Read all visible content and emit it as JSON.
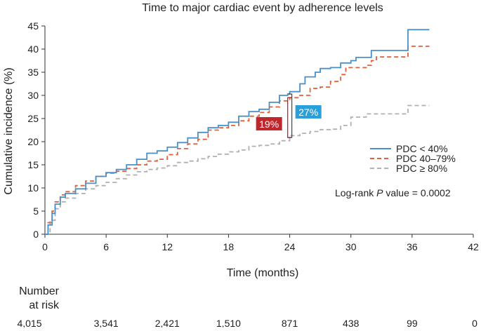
{
  "chart_data": {
    "type": "line",
    "title": "Time to major cardiac event by adherence levels",
    "xlabel": "Time (months)",
    "ylabel": "Cumulative incidence (%)",
    "xlim": [
      0,
      42
    ],
    "ylim": [
      0,
      45
    ],
    "x_ticks": [
      0,
      6,
      12,
      18,
      24,
      30,
      36,
      42
    ],
    "y_ticks": [
      0,
      5,
      10,
      15,
      20,
      25,
      30,
      35,
      40,
      45
    ],
    "series": [
      {
        "name": "PDC < 40%",
        "color": "#4a90c8",
        "style": "solid",
        "points": [
          [
            0,
            0
          ],
          [
            0.3,
            2
          ],
          [
            0.7,
            4.5
          ],
          [
            1,
            6.5
          ],
          [
            1.5,
            8
          ],
          [
            2,
            8.8
          ],
          [
            3,
            9.8
          ],
          [
            4,
            11
          ],
          [
            5,
            12.5
          ],
          [
            6,
            13.3
          ],
          [
            7,
            14
          ],
          [
            8,
            15
          ],
          [
            9,
            16.2
          ],
          [
            10,
            17.5
          ],
          [
            11,
            18
          ],
          [
            12,
            18.8
          ],
          [
            13,
            19.8
          ],
          [
            14,
            20.8
          ],
          [
            15,
            22
          ],
          [
            16,
            23
          ],
          [
            17,
            23.5
          ],
          [
            18,
            24.2
          ],
          [
            19,
            25.5
          ],
          [
            20,
            26.5
          ],
          [
            21,
            27
          ],
          [
            22,
            28.5
          ],
          [
            23,
            30
          ],
          [
            23.8,
            30.3
          ],
          [
            24,
            30.8
          ],
          [
            25,
            32.5
          ],
          [
            25.5,
            34
          ],
          [
            26.5,
            35
          ],
          [
            27,
            35.8
          ],
          [
            28,
            36
          ],
          [
            29,
            37
          ],
          [
            30,
            37.5
          ],
          [
            30.5,
            38.2
          ],
          [
            31,
            38.2
          ],
          [
            32,
            39.7
          ],
          [
            35.5,
            39.7
          ],
          [
            35.6,
            44.2
          ],
          [
            37.7,
            44.2
          ]
        ]
      },
      {
        "name": "PDC 40–79%",
        "color": "#e0603a",
        "style": "dashed",
        "points": [
          [
            0,
            0
          ],
          [
            0.3,
            2.5
          ],
          [
            0.7,
            5
          ],
          [
            1,
            7
          ],
          [
            1.5,
            8.5
          ],
          [
            2,
            9.2
          ],
          [
            3,
            10.5
          ],
          [
            4,
            11.5
          ],
          [
            5,
            12.5
          ],
          [
            6,
            13.2
          ],
          [
            7,
            13.6
          ],
          [
            8,
            14.2
          ],
          [
            9,
            15
          ],
          [
            10,
            15.8
          ],
          [
            11,
            16.2
          ],
          [
            12,
            17.2
          ],
          [
            13,
            18.5
          ],
          [
            14,
            19.5
          ],
          [
            15,
            20.5
          ],
          [
            16,
            22.5
          ],
          [
            17,
            23
          ],
          [
            18,
            23.5
          ],
          [
            19,
            24.5
          ],
          [
            20,
            25.5
          ],
          [
            21,
            26.3
          ],
          [
            22,
            27.5
          ],
          [
            23,
            28.8
          ],
          [
            24,
            29.5
          ],
          [
            25,
            30
          ],
          [
            26,
            31.5
          ],
          [
            27,
            31.8
          ],
          [
            28,
            33
          ],
          [
            29,
            34.5
          ],
          [
            29.5,
            36
          ],
          [
            31,
            36
          ],
          [
            31.5,
            36.5
          ],
          [
            32,
            37.5
          ],
          [
            32.5,
            38.3
          ],
          [
            35.5,
            38.3
          ],
          [
            35.6,
            40.6
          ],
          [
            37.7,
            40.6
          ]
        ]
      },
      {
        "name": "PDC ≥ 80%",
        "color": "#b0b0b0",
        "style": "dashed",
        "points": [
          [
            0,
            0
          ],
          [
            0.5,
            3
          ],
          [
            1,
            5.5
          ],
          [
            1.5,
            7
          ],
          [
            2,
            7.8
          ],
          [
            3,
            8.8
          ],
          [
            4,
            9.8
          ],
          [
            5,
            10.5
          ],
          [
            6,
            11.2
          ],
          [
            7,
            12
          ],
          [
            8,
            12.8
          ],
          [
            9,
            13.5
          ],
          [
            10,
            14
          ],
          [
            11,
            14.3
          ],
          [
            12,
            14.8
          ],
          [
            13,
            15.5
          ],
          [
            14,
            15.8
          ],
          [
            15,
            16.3
          ],
          [
            16,
            16.8
          ],
          [
            17,
            17.3
          ],
          [
            18,
            17.8
          ],
          [
            19,
            18.2
          ],
          [
            20,
            19
          ],
          [
            21,
            19.2
          ],
          [
            22,
            19.5
          ],
          [
            23,
            20.2
          ],
          [
            24,
            21.3
          ],
          [
            25,
            21.8
          ],
          [
            26,
            22.2
          ],
          [
            27,
            22.6
          ],
          [
            28,
            22.7
          ],
          [
            29,
            23.5
          ],
          [
            30,
            25.3
          ],
          [
            31,
            25.3
          ],
          [
            31.5,
            26
          ],
          [
            35,
            26
          ],
          [
            35.6,
            27.8
          ],
          [
            37.7,
            27.8
          ]
        ]
      }
    ],
    "legend": [
      "PDC < 40%",
      "PDC 40–79%",
      "PDC ≥ 80%"
    ],
    "legend_placement": "middle-right",
    "annotations": {
      "logrank_prefix": "Log-rank ",
      "logrank_p": "P",
      "logrank_suffix": " value = 0.0002",
      "box_red": {
        "text": "19%",
        "color": "#c0262c"
      },
      "box_blue": {
        "text": "27%",
        "color": "#2b9fd9"
      },
      "bracket_x": 23.8,
      "bracket_y_low": 20.9,
      "bracket_y_mid": 29.5,
      "bracket_y_high": 30.3
    },
    "number_at_risk": {
      "label_line1": "Number",
      "label_line2": "at risk",
      "values": [
        "4,015",
        "3,541",
        "2,421",
        "1,510",
        "871",
        "438",
        "99",
        "0"
      ]
    }
  }
}
